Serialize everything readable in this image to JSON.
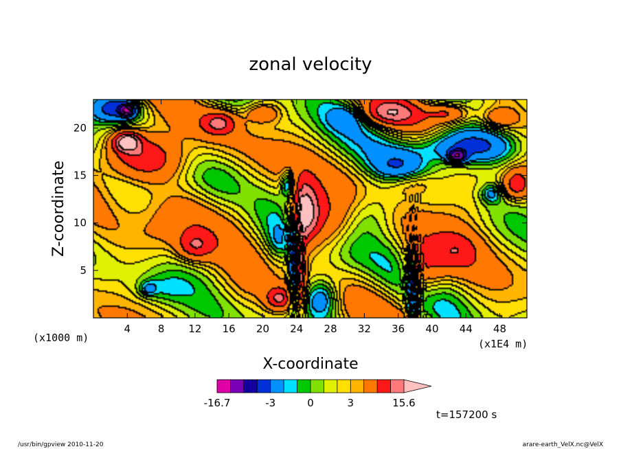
{
  "chart_data": {
    "type": "heatmap",
    "title": "zonal velocity",
    "xlabel": "X-coordinate",
    "ylabel": "Z-coordinate",
    "x_unit": "(x1E4 m)",
    "y_unit": "(x1000 m)",
    "xlim": [
      0,
      51.2
    ],
    "ylim": [
      0,
      23
    ],
    "x_ticks": [
      4,
      8,
      12,
      16,
      20,
      24,
      28,
      32,
      36,
      40,
      44,
      48
    ],
    "y_ticks": [
      5,
      10,
      15,
      20
    ],
    "colorbar": {
      "levels": [
        -16.7,
        -12,
        -9,
        -6,
        -3,
        -2,
        -1,
        0,
        1,
        2,
        3,
        6,
        9,
        12,
        15.6
      ],
      "colors": [
        "#e000a8",
        "#7a00b8",
        "#1400a0",
        "#0030d8",
        "#0090ff",
        "#00e0ff",
        "#00c800",
        "#80e000",
        "#e0f000",
        "#ffe000",
        "#ffb400",
        "#ff7800",
        "#ff1818",
        "#ff7a7a",
        "#ffc0c0"
      ],
      "tick_labels": [
        {
          "value": -16.7,
          "label": "-16.7"
        },
        {
          "value": -3,
          "label": "-3"
        },
        {
          "value": 0,
          "label": "0"
        },
        {
          "value": 3,
          "label": "3"
        },
        {
          "value": 15.6,
          "label": "15.6"
        }
      ]
    },
    "time_label": "t=157200 s",
    "field": [
      {
        "x": 6,
        "z": 17,
        "v": 8,
        "sx": 5,
        "sz": 2.5
      },
      {
        "x": 4,
        "z": 18.5,
        "v": 12,
        "sx": 1.5,
        "sz": 1
      },
      {
        "x": 15,
        "z": 20.5,
        "v": 7,
        "sx": 2,
        "sz": 1.2
      },
      {
        "x": 20,
        "z": 21.5,
        "v": 5,
        "sx": 2,
        "sz": 1
      },
      {
        "x": 2.5,
        "z": 22,
        "v": -8,
        "sx": 3,
        "sz": 1.5
      },
      {
        "x": 4,
        "z": 21.8,
        "v": -14,
        "sx": 0.8,
        "sz": 0.6
      },
      {
        "x": 25,
        "z": 11,
        "v": 12,
        "sx": 1.5,
        "sz": 3
      },
      {
        "x": 27,
        "z": 10,
        "v": 5,
        "sx": 3,
        "sz": 3
      },
      {
        "x": 22,
        "z": 8,
        "v": -3,
        "sx": 1.5,
        "sz": 2
      },
      {
        "x": 23.8,
        "z": 6,
        "v": -10,
        "sx": 0.6,
        "sz": 4
      },
      {
        "x": 24.6,
        "z": 5,
        "v": 9,
        "sx": 0.6,
        "sz": 4
      },
      {
        "x": 23,
        "z": 14,
        "v": -6,
        "sx": 0.8,
        "sz": 1.5
      },
      {
        "x": 22,
        "z": 2,
        "v": 8,
        "sx": 1.5,
        "sz": 1.2
      },
      {
        "x": 27,
        "z": 2,
        "v": -6,
        "sx": 2,
        "sz": 2
      },
      {
        "x": 44,
        "z": 18,
        "v": -9,
        "sx": 6,
        "sz": 1.8
      },
      {
        "x": 43,
        "z": 17,
        "v": -14,
        "sx": 1,
        "sz": 0.6
      },
      {
        "x": 36,
        "z": 16,
        "v": -4,
        "sx": 3,
        "sz": 1.5
      },
      {
        "x": 38,
        "z": 14,
        "v": 3,
        "sx": 3,
        "sz": 1.3
      },
      {
        "x": 33,
        "z": 11,
        "v": -3,
        "sx": 3,
        "sz": 2.5
      },
      {
        "x": 39,
        "z": 5,
        "v": 6,
        "sx": 2.5,
        "sz": 3
      },
      {
        "x": 37.7,
        "z": 3.5,
        "v": -8,
        "sx": 0.5,
        "sz": 3
      },
      {
        "x": 44,
        "z": 12,
        "v": 2,
        "sx": 4,
        "sz": 3
      },
      {
        "x": 47,
        "z": 13,
        "v": -4,
        "sx": 1.2,
        "sz": 1
      },
      {
        "x": 50,
        "z": 14,
        "v": 7,
        "sx": 1.5,
        "sz": 1.5
      },
      {
        "x": 43,
        "z": 7,
        "v": 4,
        "sx": 2.5,
        "sz": 2
      },
      {
        "x": 8,
        "z": 9,
        "v": 3,
        "sx": 4,
        "sz": 3
      },
      {
        "x": 12,
        "z": 7.5,
        "v": 6,
        "sx": 2,
        "sz": 1.5
      },
      {
        "x": 8,
        "z": 3,
        "v": -2,
        "sx": 3,
        "sz": 1.5
      },
      {
        "x": 6.5,
        "z": 3,
        "v": -3,
        "sx": 1,
        "sz": 0.8
      },
      {
        "x": 18,
        "z": 3,
        "v": 1,
        "sx": 3,
        "sz": 2
      },
      {
        "x": 35,
        "z": 21.5,
        "v": 7,
        "sx": 3,
        "sz": 1.2
      },
      {
        "x": 42,
        "z": 21.5,
        "v": 6,
        "sx": 2.5,
        "sz": 1
      },
      {
        "x": 48,
        "z": 21,
        "v": 4,
        "sx": 2,
        "sz": 1
      },
      {
        "x": 30,
        "z": 21,
        "v": -3,
        "sx": 2,
        "sz": 1.2
      },
      {
        "x": 18,
        "z": 12,
        "v": 2,
        "sx": 3,
        "sz": 3
      },
      {
        "x": 10,
        "z": 14,
        "v": -1,
        "sx": 4,
        "sz": 2
      },
      {
        "x": 30,
        "z": 6,
        "v": -1,
        "sx": 3,
        "sz": 3
      },
      {
        "x": 48,
        "z": 5,
        "v": 0,
        "sx": 3,
        "sz": 3
      }
    ],
    "field_background": 1.2
  },
  "footer": {
    "left": "/usr/bin/gpview 2010-11-20",
    "right": "arare-earth_VelX.nc@VelX"
  }
}
